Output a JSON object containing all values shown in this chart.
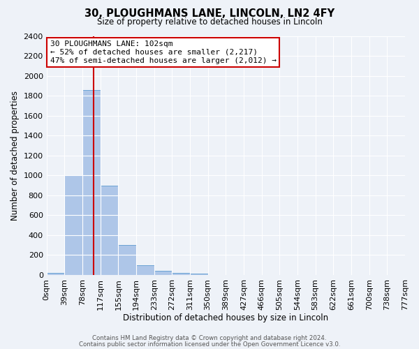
{
  "title": "30, PLOUGHMANS LANE, LINCOLN, LN2 4FY",
  "subtitle": "Size of property relative to detached houses in Lincoln",
  "xlabel": "Distribution of detached houses by size in Lincoln",
  "ylabel": "Number of detached properties",
  "bin_labels": [
    "0sqm",
    "39sqm",
    "78sqm",
    "117sqm",
    "155sqm",
    "194sqm",
    "233sqm",
    "272sqm",
    "311sqm",
    "350sqm",
    "389sqm",
    "427sqm",
    "466sqm",
    "505sqm",
    "544sqm",
    "583sqm",
    "622sqm",
    "661sqm",
    "700sqm",
    "738sqm",
    "777sqm"
  ],
  "bar_values": [
    20,
    1000,
    1860,
    900,
    300,
    100,
    40,
    20,
    15,
    0,
    0,
    0,
    0,
    0,
    0,
    0,
    0,
    0,
    0,
    0
  ],
  "bar_color": "#aec6e8",
  "bar_edgecolor": "#6aa3d4",
  "vline_color": "#cc0000",
  "annotation_text": "30 PLOUGHMANS LANE: 102sqm\n← 52% of detached houses are smaller (2,217)\n47% of semi-detached houses are larger (2,012) →",
  "annotation_box_color": "#ffffff",
  "annotation_box_edgecolor": "#cc0000",
  "ylim": [
    0,
    2400
  ],
  "yticks": [
    0,
    200,
    400,
    600,
    800,
    1000,
    1200,
    1400,
    1600,
    1800,
    2000,
    2200,
    2400
  ],
  "bg_color": "#eef2f8",
  "grid_color": "#ffffff",
  "footer1": "Contains HM Land Registry data © Crown copyright and database right 2024.",
  "footer2": "Contains public sector information licensed under the Open Government Licence v3.0."
}
